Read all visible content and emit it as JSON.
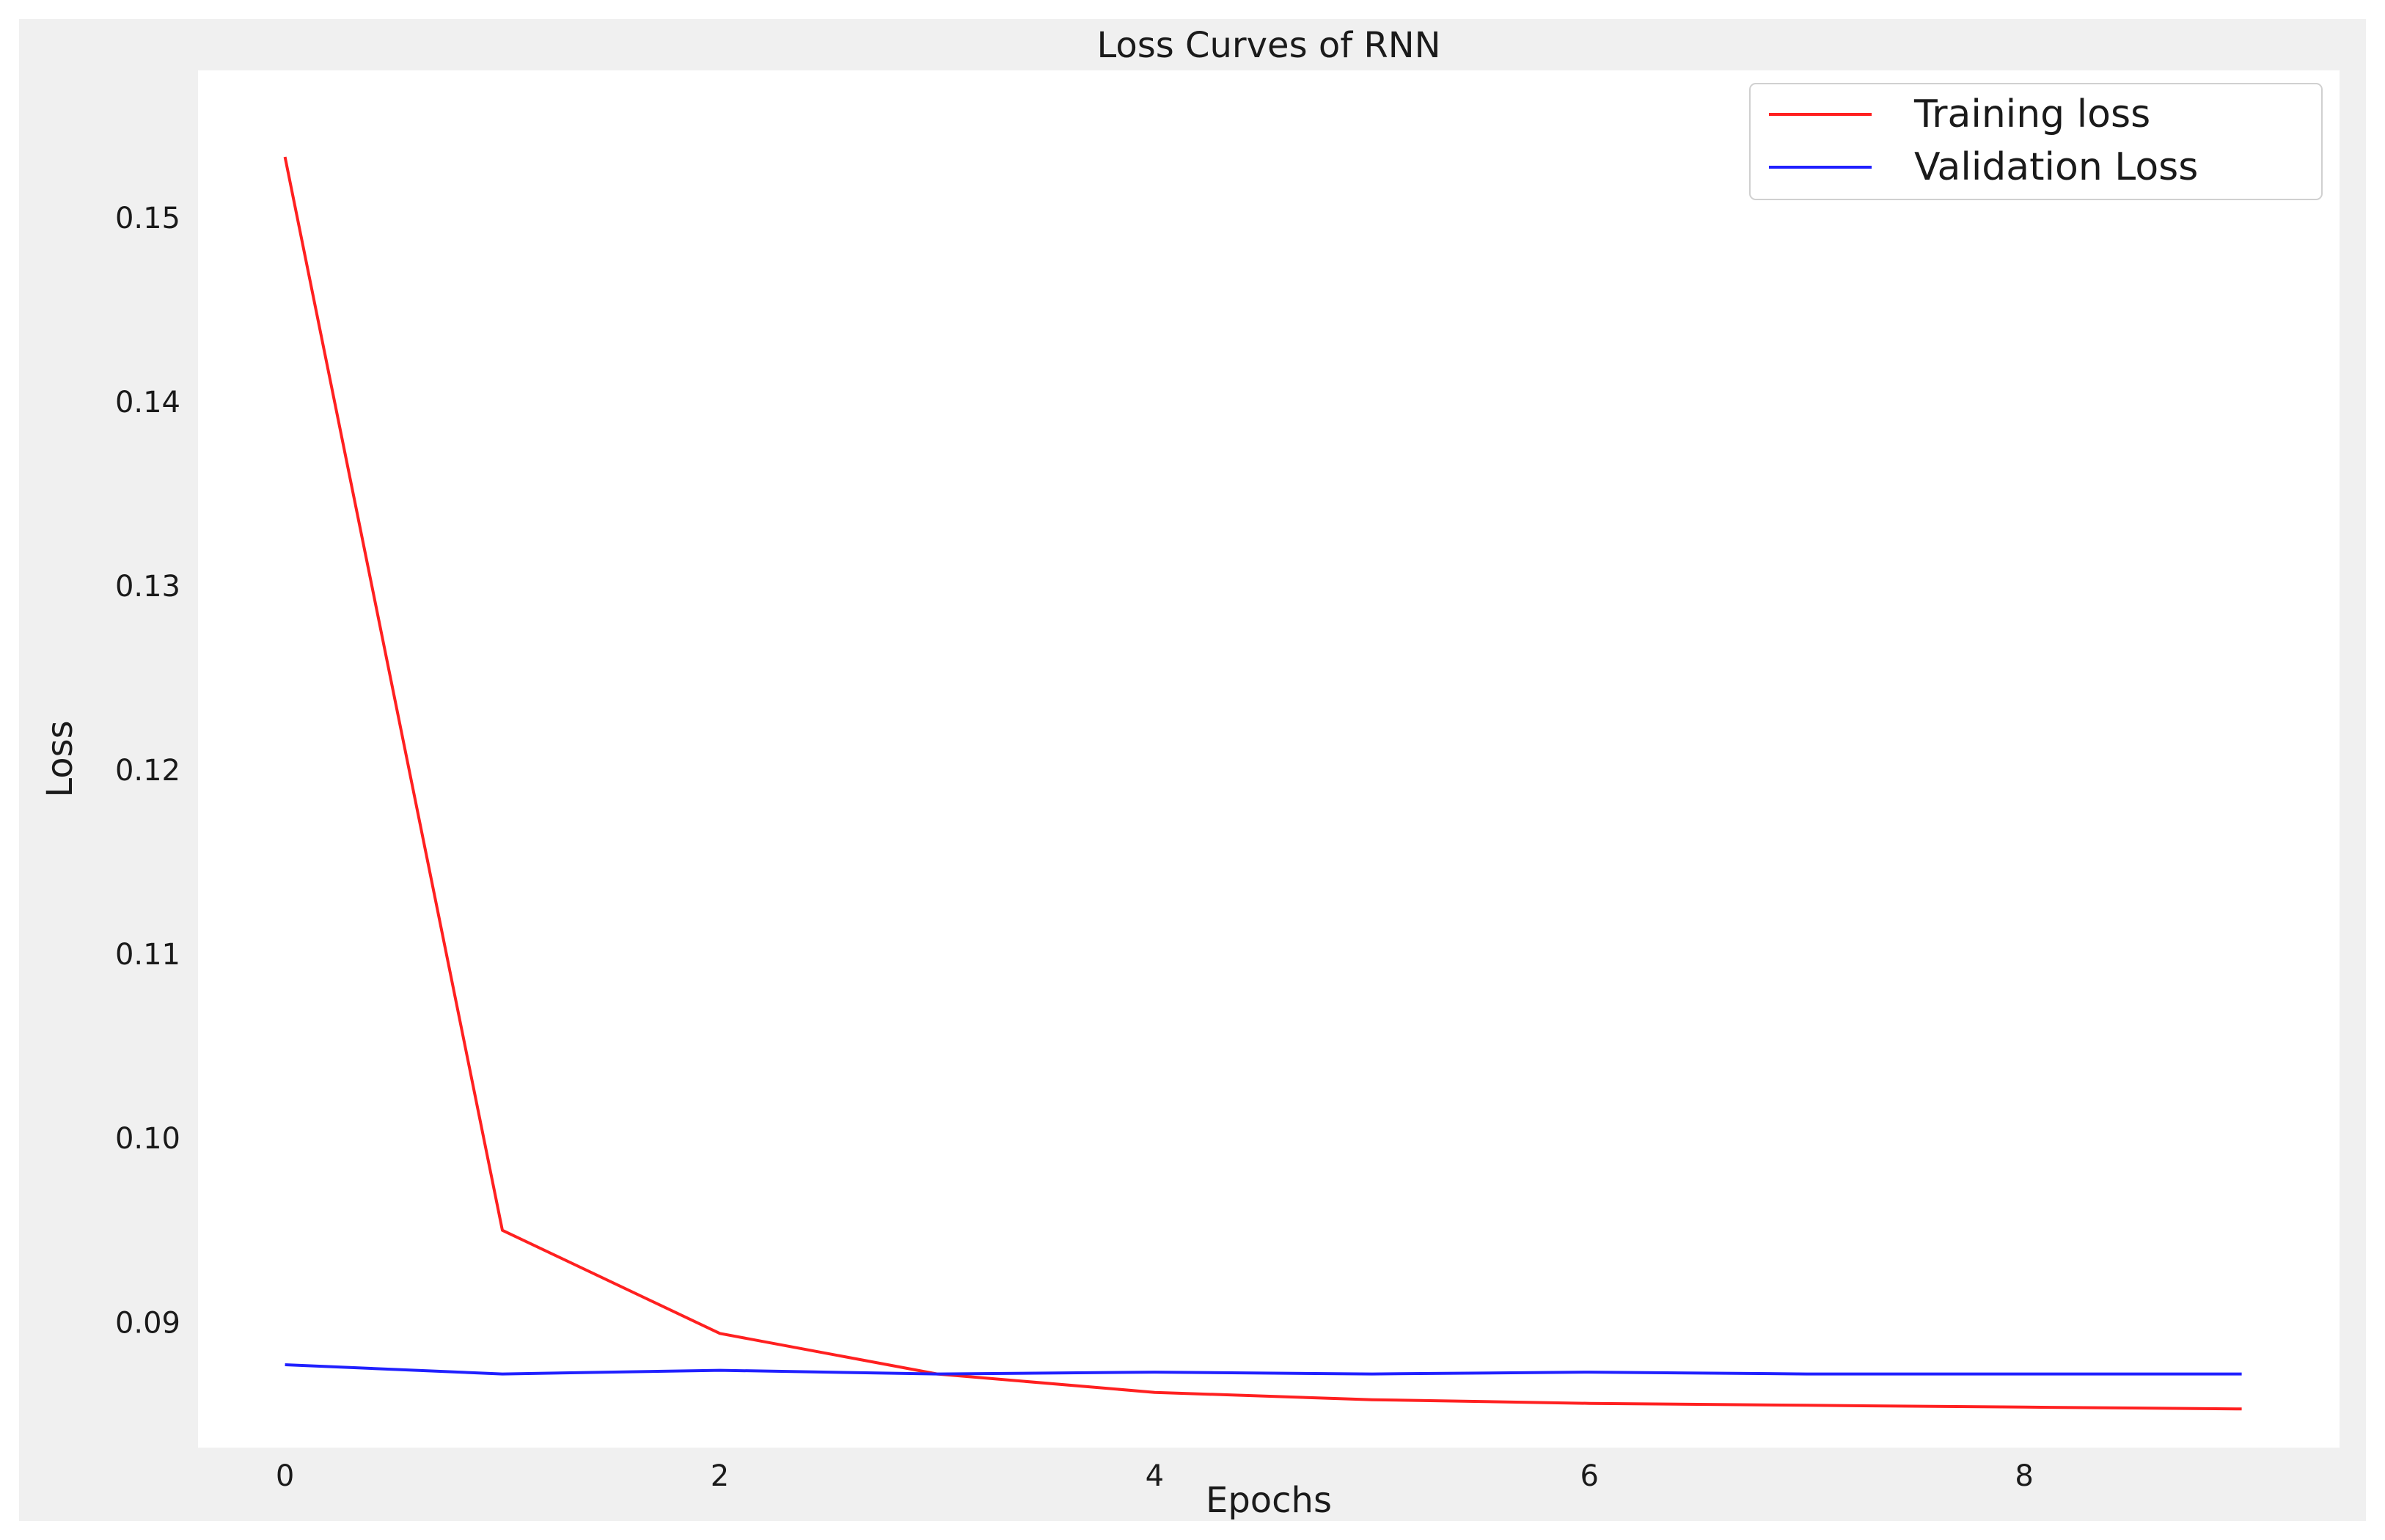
{
  "chart_data": {
    "type": "line",
    "title": "Loss Curves of RNN",
    "xlabel": "Epochs",
    "ylabel": "Loss",
    "x": [
      0,
      1,
      2,
      3,
      4,
      5,
      6,
      7,
      8,
      9
    ],
    "xticks": [
      0,
      2,
      4,
      6,
      8
    ],
    "yticks": [
      0.09,
      0.1,
      0.11,
      0.12,
      0.13,
      0.14,
      0.15
    ],
    "xlim": [
      -0.4,
      9.45
    ],
    "ylim": [
      0.0832,
      0.158
    ],
    "grid": false,
    "legend_position": "top-right",
    "series": [
      {
        "name": "Training loss",
        "color": "#ff2020",
        "values": [
          0.1533,
          0.095,
          0.0894,
          0.0872,
          0.0862,
          0.0858,
          0.0856,
          0.0855,
          0.0854,
          0.0853
        ]
      },
      {
        "name": "Validation Loss",
        "color": "#2020ff",
        "values": [
          0.0877,
          0.0872,
          0.0874,
          0.0872,
          0.0873,
          0.0872,
          0.0873,
          0.0872,
          0.0872,
          0.0872
        ]
      }
    ]
  }
}
